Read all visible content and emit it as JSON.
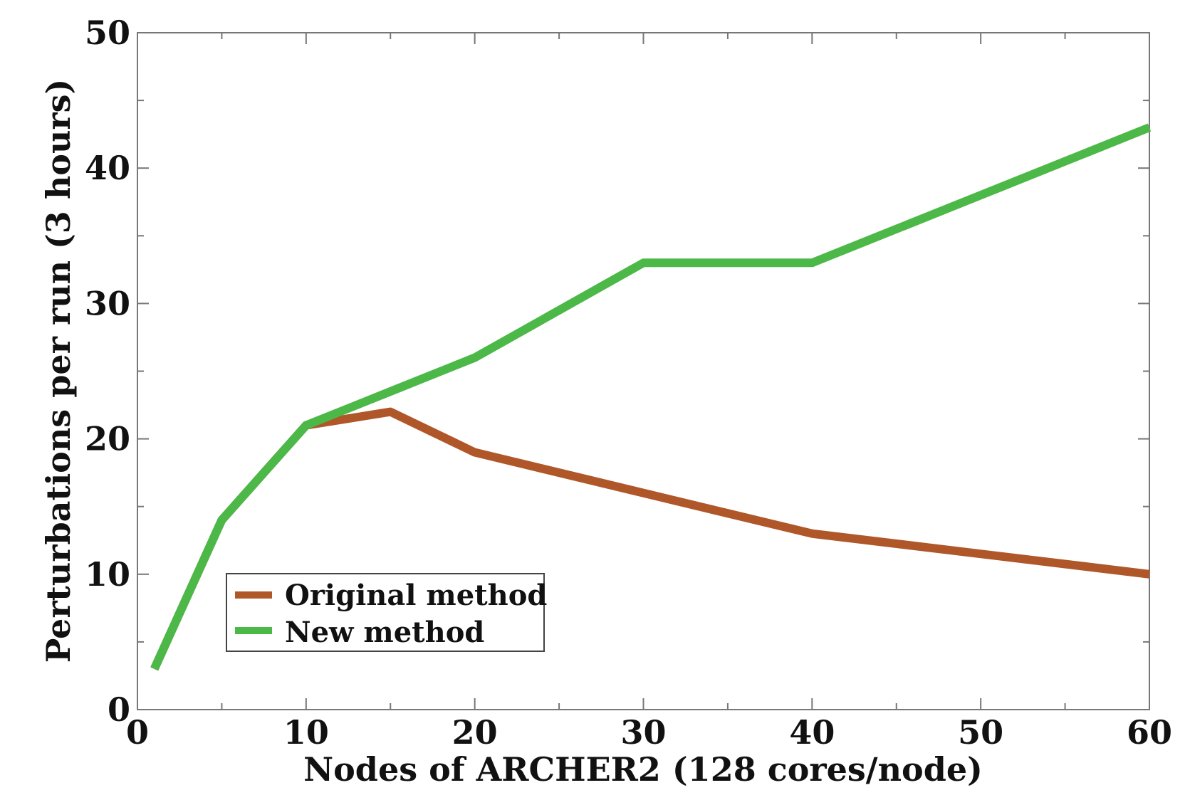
{
  "chart_data": {
    "type": "line",
    "title": "",
    "xlabel": "Nodes of ARCHER2 (128 cores/node)",
    "ylabel": "Perturbations per run (3 hours)",
    "xlim": [
      0,
      60
    ],
    "ylim": [
      0,
      50
    ],
    "xticks": [
      "0",
      "10",
      "20",
      "30",
      "40",
      "50",
      "60"
    ],
    "yticks": [
      "0",
      "10",
      "20",
      "30",
      "40",
      "50"
    ],
    "grid": false,
    "legend_position": "bottom-left",
    "series": [
      {
        "name": "Original method",
        "color": "#b0572a",
        "x": [
          1,
          5,
          10,
          15,
          20,
          30,
          40,
          60
        ],
        "y": [
          3,
          14,
          21,
          22,
          19,
          16,
          13,
          10
        ]
      },
      {
        "name": "New method",
        "color": "#4cb848",
        "x": [
          1,
          5,
          10,
          15,
          20,
          30,
          40,
          60
        ],
        "y": [
          3,
          14,
          21,
          23.5,
          26,
          33,
          33,
          43
        ]
      }
    ]
  }
}
